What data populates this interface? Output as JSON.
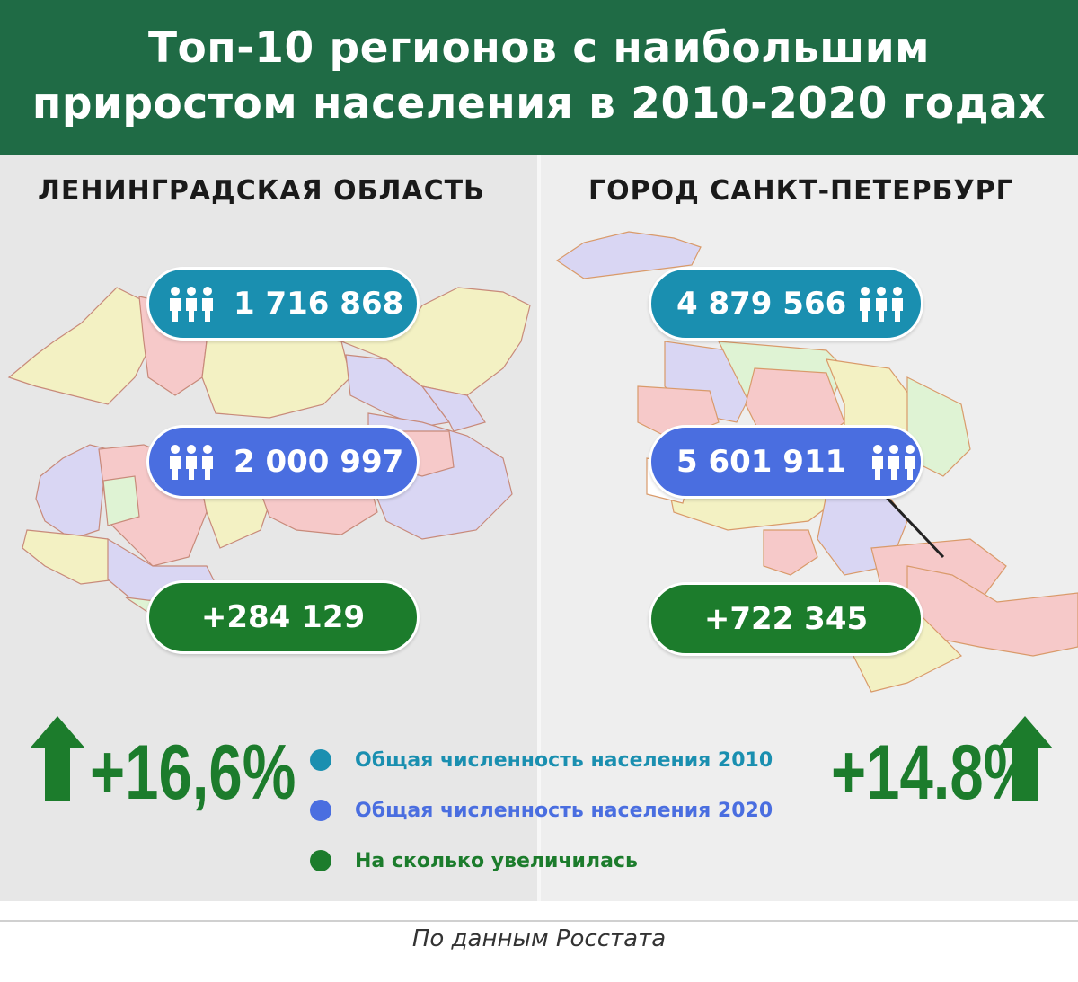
{
  "header": {
    "title_line1": "Топ-10 регионов с наибольшим",
    "title_line2": "приростом населения в 2010-2020 годах"
  },
  "colors": {
    "header_bg": "#1f6b45",
    "population_2010": "#1a8fb0",
    "population_2020": "#4a6ee0",
    "increase": "#1c7c2c"
  },
  "left_region": {
    "name": "ЛЕНИНГРАДСКАЯ ОБЛАСТЬ",
    "population_2010": "1 716 868",
    "population_2020": "2 000 997",
    "increase": "+284 129",
    "growth_percent": "+16,6%",
    "icon": "people-icon",
    "arrow": "arrow-up-icon"
  },
  "right_region": {
    "name": "ГОРОД САНКТ-ПЕТЕРБУРГ",
    "population_2010": "4 879 566",
    "population_2020": "5 601 911",
    "increase": "+722 345",
    "growth_percent": "+14.8%",
    "icon": "people-icon",
    "arrow": "arrow-up-icon"
  },
  "legend": [
    {
      "label": "Общая численность населения 2010",
      "color": "#1a8fb0"
    },
    {
      "label": "Общая численность населения 2020",
      "color": "#4a6ee0"
    },
    {
      "label": "На сколько увеличилась",
      "color": "#1c7c2c"
    }
  ],
  "footer": {
    "source": "По данным Росстата"
  }
}
